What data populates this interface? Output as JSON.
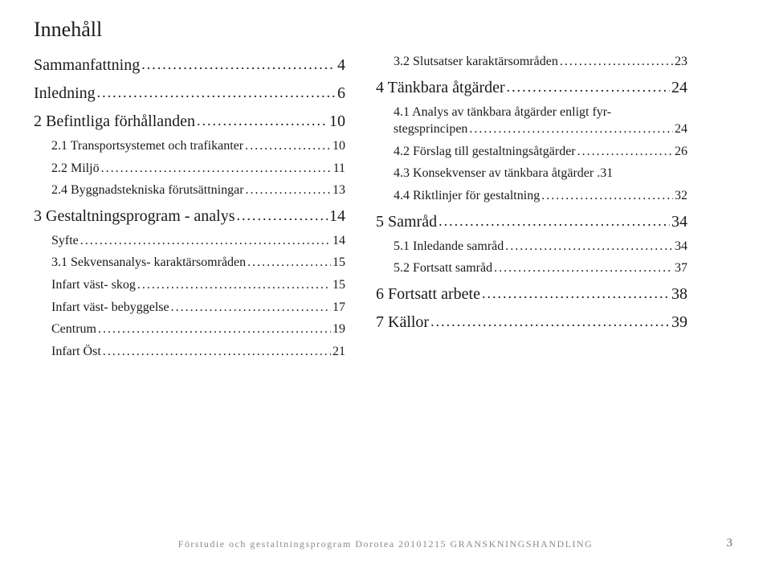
{
  "toc_title": "Innehåll",
  "left": [
    {
      "level": 1,
      "label": "Sammanfattning",
      "page": "4"
    },
    {
      "level": 1,
      "label": "Inledning",
      "page": "6"
    },
    {
      "level": 1,
      "label": "2 Befintliga förhållanden",
      "page": "10"
    },
    {
      "level": 2,
      "label": "2.1 Transportsystemet och trafikanter",
      "page": "10"
    },
    {
      "level": 2,
      "label": "2.2 Miljö",
      "page": "11"
    },
    {
      "level": 2,
      "label": "2.4 Byggnadstekniska förutsättningar",
      "page": "13"
    },
    {
      "level": 1,
      "label": "3 Gestaltningsprogram - analys",
      "page": "14"
    },
    {
      "level": 2,
      "label": "Syfte",
      "page": "14"
    },
    {
      "level": 2,
      "label": "3.1 Sekvensanalys- karaktärsområden",
      "page": "15"
    },
    {
      "level": 3,
      "label": "Infart väst- skog",
      "page": "15"
    },
    {
      "level": 3,
      "label": "Infart väst- bebyggelse",
      "page": "17"
    },
    {
      "level": 3,
      "label": "Centrum",
      "page": "19"
    },
    {
      "level": 3,
      "label": "Infart Öst",
      "page": "21"
    }
  ],
  "right": [
    {
      "level": 2,
      "label": "3.2 Slutsatser karaktärsområden",
      "page": "23"
    },
    {
      "level": 1,
      "label": "4 Tänkbara åtgärder",
      "page": "24"
    },
    {
      "level": 2,
      "label": "4.1 Analys av tänkbara åtgärder enligt fyrstegsprincipen",
      "page": "24",
      "wrap": true
    },
    {
      "level": 2,
      "label": "4.2 Förslag till gestaltningsåtgärder",
      "page": "26"
    },
    {
      "level": 2,
      "label": "4.3 Konsekvenser av tänkbara åtgärder",
      "page": "31",
      "tight": true
    },
    {
      "level": 2,
      "label": "4.4 Riktlinjer för gestaltning",
      "page": "32"
    },
    {
      "level": 1,
      "label": "5 Samråd",
      "page": "34"
    },
    {
      "level": 2,
      "label": "5.1 Inledande samråd",
      "page": "34"
    },
    {
      "level": 2,
      "label": "5.2 Fortsatt samråd",
      "page": "37"
    },
    {
      "level": 1,
      "label": "6 Fortsatt arbete",
      "page": "38"
    },
    {
      "level": 1,
      "label": "7 Källor",
      "page": "39"
    }
  ],
  "footer_text": "Förstudie och gestaltningsprogram Dorotea 20101215 GRANSKNINGSHANDLING",
  "footer_page": "3",
  "colors": {
    "text": "#1a1a1a",
    "footer": "#8a8a8a",
    "background": "#ffffff"
  }
}
